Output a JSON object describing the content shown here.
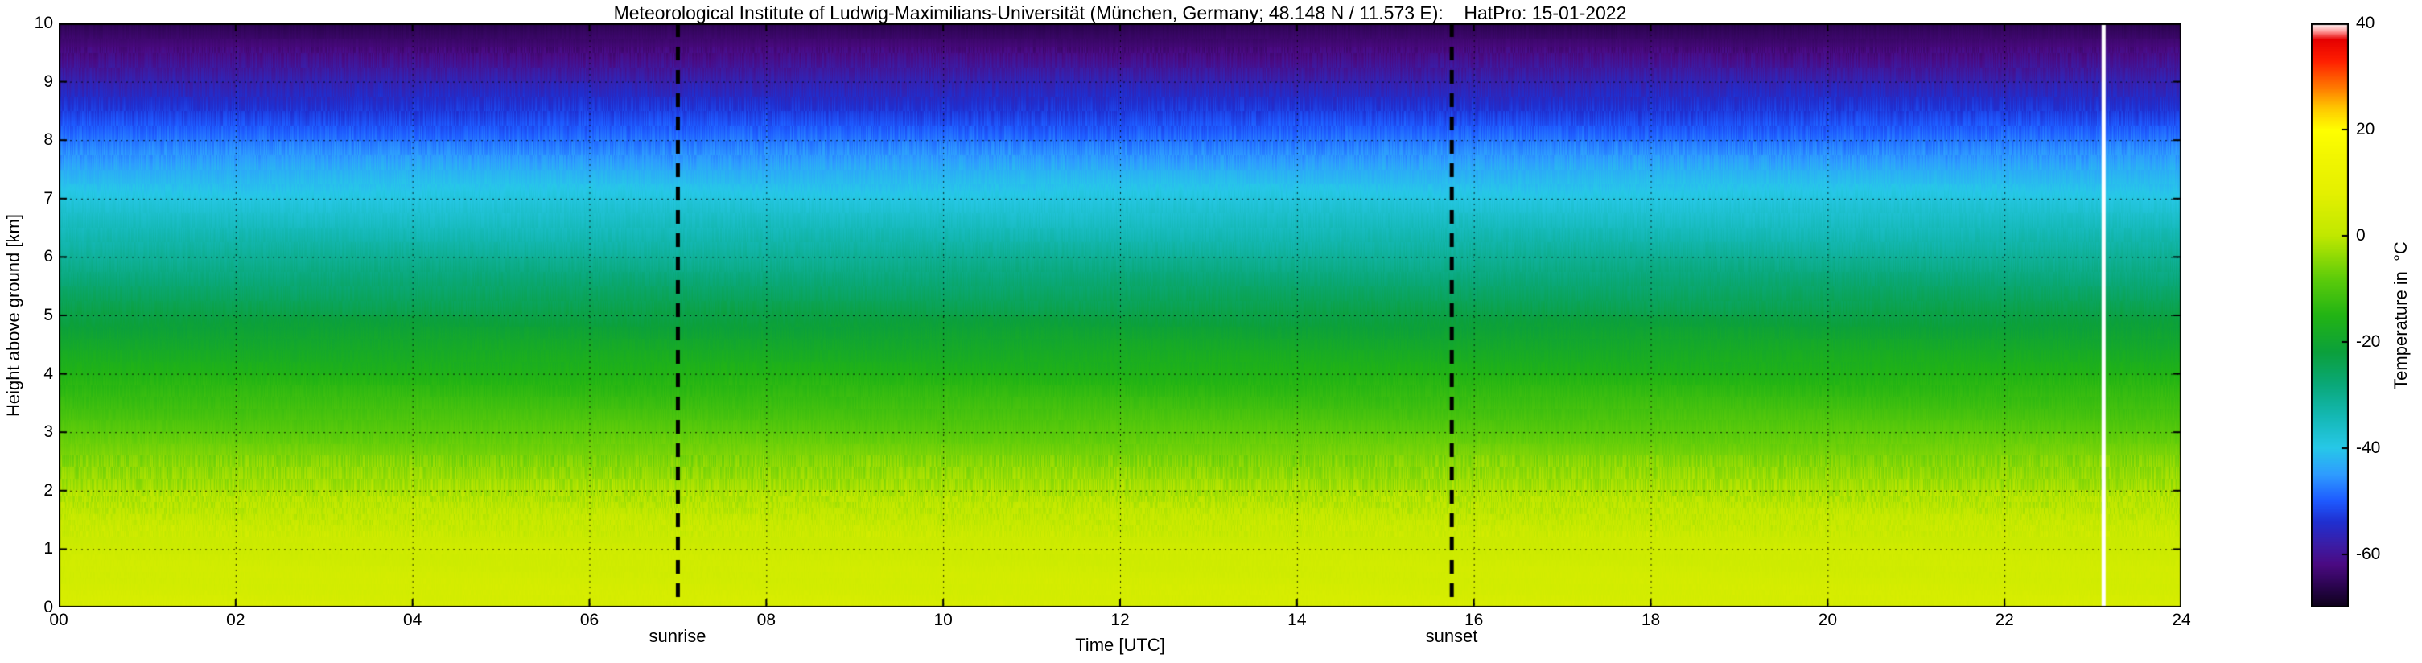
{
  "title": "Meteorological Institute of Ludwig-Maximilians-Universität (München, Germany; 48.148 N / 11.573 E):    HatPro: 15-01-2022",
  "plot": {
    "x_axis": {
      "label": "Time [UTC]",
      "tick_labels": [
        "00",
        "02",
        "04",
        "06",
        "08",
        "10",
        "12",
        "14",
        "16",
        "18",
        "20",
        "22",
        "24"
      ],
      "tick_values": [
        0,
        2,
        4,
        6,
        8,
        10,
        12,
        14,
        16,
        18,
        20,
        22,
        24
      ],
      "range": [
        0,
        24
      ]
    },
    "y_axis": {
      "label": "Height above ground [km]",
      "tick_labels": [
        "0",
        "1",
        "2",
        "3",
        "4",
        "5",
        "6",
        "7",
        "8",
        "9",
        "10"
      ],
      "tick_values": [
        0,
        1,
        2,
        3,
        4,
        5,
        6,
        7,
        8,
        9,
        10
      ],
      "range": [
        0,
        10
      ]
    },
    "annotations": {
      "sunrise": {
        "label": "sunrise",
        "time_utc": 7.0
      },
      "sunset": {
        "label": "sunset",
        "time_utc": 15.75
      },
      "data_gap": {
        "time_utc": 23.12
      }
    }
  },
  "colorbar": {
    "label": "Temperature in  °C",
    "tick_labels": [
      "40",
      "20",
      "0",
      "-20",
      "-40",
      "-60"
    ],
    "tick_values": [
      40,
      20,
      0,
      -20,
      -40,
      -60
    ],
    "range": [
      -70,
      40
    ],
    "stops": [
      {
        "t": -70,
        "c": "#0d0119"
      },
      {
        "t": -66,
        "c": "#2b0450"
      },
      {
        "t": -62,
        "c": "#4b0a82"
      },
      {
        "t": -58,
        "c": "#3a1ea8"
      },
      {
        "t": -54,
        "c": "#1f2fd0"
      },
      {
        "t": -50,
        "c": "#1e5aff"
      },
      {
        "t": -45,
        "c": "#2e9cff"
      },
      {
        "t": -40,
        "c": "#27c8e8"
      },
      {
        "t": -34,
        "c": "#14b8b4"
      },
      {
        "t": -28,
        "c": "#0aa878"
      },
      {
        "t": -22,
        "c": "#0ba03c"
      },
      {
        "t": -15,
        "c": "#22b414"
      },
      {
        "t": -8,
        "c": "#5ecc0a"
      },
      {
        "t": 0,
        "c": "#c0e800"
      },
      {
        "t": 8,
        "c": "#e4f000"
      },
      {
        "t": 15,
        "c": "#f2f600"
      },
      {
        "t": 20,
        "c": "#ffff00"
      },
      {
        "t": 24,
        "c": "#ffc800"
      },
      {
        "t": 28,
        "c": "#ff7800"
      },
      {
        "t": 33,
        "c": "#ff1e00"
      },
      {
        "t": 37,
        "c": "#e60000"
      },
      {
        "t": 38.5,
        "c": "#ff9696"
      },
      {
        "t": 40,
        "c": "#ffffff"
      }
    ]
  },
  "chart_data": {
    "type": "heatmap",
    "title": "Meteorological Institute of Ludwig-Maximilians-Universität (München, Germany; 48.148 N / 11.573 E):    HatPro: 15-01-2022",
    "instrument": "HatPro",
    "date": "15-01-2022",
    "location": "München, Germany; 48.148 N / 11.573 E",
    "xlabel": "Time [UTC]",
    "ylabel": "Height above ground [km]",
    "colorbar_label": "Temperature in  °C",
    "x_range_hours_utc": [
      0,
      24
    ],
    "y_range_km": [
      0,
      10
    ],
    "temperature_range_c": [
      -70,
      40
    ],
    "grid": true,
    "profile": {
      "description": "Vertical temperature profile, approximately constant through the day",
      "heights_km": [
        0,
        0.25,
        0.5,
        0.75,
        1,
        1.25,
        1.5,
        1.75,
        2,
        2.25,
        2.5,
        3,
        3.5,
        4,
        4.5,
        5,
        5.5,
        6,
        6.5,
        7,
        7.5,
        8,
        8.5,
        9,
        9.25,
        9.5,
        9.75,
        10
      ],
      "temperatures_c": [
        5,
        4.5,
        4,
        3.5,
        3,
        2,
        1,
        -0.5,
        -2,
        -3.5,
        -5,
        -8.5,
        -12,
        -15.5,
        -19,
        -23,
        -27,
        -31,
        -35,
        -39,
        -43,
        -48,
        -53,
        -57,
        -59.5,
        -62,
        -64,
        -66
      ]
    },
    "events": {
      "sunrise_utc": 7.0,
      "sunset_utc": 15.75,
      "data_gap_utc": 23.12
    }
  }
}
